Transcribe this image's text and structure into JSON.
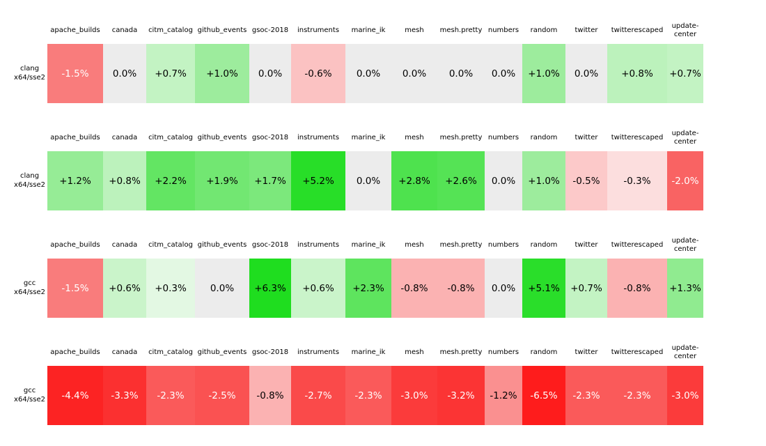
{
  "columns": [
    "apache_builds",
    "canada",
    "citm_catalog",
    "github_events",
    "gsoc-2018",
    "instruments",
    "marine_ik",
    "mesh",
    "mesh.pretty",
    "numbers",
    "random",
    "twitter",
    "twitterescaped",
    "update-center"
  ],
  "colors": {
    "background": "#ffffff",
    "zero_cell": "#ececec",
    "text_dark": "#000000",
    "text_light": "#ffffff",
    "max_green": "#1fdd1f",
    "max_red": "#fe1c1c"
  },
  "blocks": [
    {
      "row_label_line1": "clang",
      "row_label_line2": "x64/sse2",
      "cells": [
        {
          "text": "-1.5%",
          "bg": "#f97c7c",
          "fg": "#ffffff"
        },
        {
          "text": "0.0%",
          "bg": "#ececec",
          "fg": "#000000"
        },
        {
          "text": "+0.7%",
          "bg": "#c3f3c3",
          "fg": "#000000"
        },
        {
          "text": "+1.0%",
          "bg": "#9dec9d",
          "fg": "#000000"
        },
        {
          "text": "0.0%",
          "bg": "#ececec",
          "fg": "#000000"
        },
        {
          "text": "-0.6%",
          "bg": "#fbc2c2",
          "fg": "#000000"
        },
        {
          "text": "0.0%",
          "bg": "#ececec",
          "fg": "#000000"
        },
        {
          "text": "0.0%",
          "bg": "#ececec",
          "fg": "#000000"
        },
        {
          "text": "0.0%",
          "bg": "#ececec",
          "fg": "#000000"
        },
        {
          "text": "0.0%",
          "bg": "#ececec",
          "fg": "#000000"
        },
        {
          "text": "+1.0%",
          "bg": "#9dec9d",
          "fg": "#000000"
        },
        {
          "text": "0.0%",
          "bg": "#ececec",
          "fg": "#000000"
        },
        {
          "text": "+0.8%",
          "bg": "#bcf2bc",
          "fg": "#000000"
        },
        {
          "text": "+0.7%",
          "bg": "#c3f3c3",
          "fg": "#000000"
        }
      ]
    },
    {
      "row_label_line1": "clang",
      "row_label_line2": "x64/sse2",
      "cells": [
        {
          "text": "+1.2%",
          "bg": "#96ec96",
          "fg": "#000000"
        },
        {
          "text": "+0.8%",
          "bg": "#bcf2bc",
          "fg": "#000000"
        },
        {
          "text": "+2.2%",
          "bg": "#63e563",
          "fg": "#000000"
        },
        {
          "text": "+1.9%",
          "bg": "#72e772",
          "fg": "#000000"
        },
        {
          "text": "+1.7%",
          "bg": "#7ce87c",
          "fg": "#000000"
        },
        {
          "text": "+5.2%",
          "bg": "#28de28",
          "fg": "#000000"
        },
        {
          "text": "0.0%",
          "bg": "#ececec",
          "fg": "#000000"
        },
        {
          "text": "+2.8%",
          "bg": "#4ee24e",
          "fg": "#000000"
        },
        {
          "text": "+2.6%",
          "bg": "#55e355",
          "fg": "#000000"
        },
        {
          "text": "0.0%",
          "bg": "#ececec",
          "fg": "#000000"
        },
        {
          "text": "+1.0%",
          "bg": "#9dec9d",
          "fg": "#000000"
        },
        {
          "text": "-0.5%",
          "bg": "#fcc9c9",
          "fg": "#000000"
        },
        {
          "text": "-0.3%",
          "bg": "#fcdede",
          "fg": "#000000"
        },
        {
          "text": "-2.0%",
          "bg": "#f96363",
          "fg": "#ffffff"
        }
      ]
    },
    {
      "row_label_line1": "gcc",
      "row_label_line2": "x64/sse2",
      "cells": [
        {
          "text": "-1.5%",
          "bg": "#f97c7c",
          "fg": "#ffffff"
        },
        {
          "text": "+0.6%",
          "bg": "#caf4ca",
          "fg": "#000000"
        },
        {
          "text": "+0.3%",
          "bg": "#e3f8e3",
          "fg": "#000000"
        },
        {
          "text": "0.0%",
          "bg": "#ececec",
          "fg": "#000000"
        },
        {
          "text": "+6.3%",
          "bg": "#1fdd1f",
          "fg": "#000000"
        },
        {
          "text": "+0.6%",
          "bg": "#caf4ca",
          "fg": "#000000"
        },
        {
          "text": "+2.3%",
          "bg": "#5ee45e",
          "fg": "#000000"
        },
        {
          "text": "-0.8%",
          "bg": "#fbb2b2",
          "fg": "#000000"
        },
        {
          "text": "-0.8%",
          "bg": "#fbb2b2",
          "fg": "#000000"
        },
        {
          "text": "0.0%",
          "bg": "#ececec",
          "fg": "#000000"
        },
        {
          "text": "+5.1%",
          "bg": "#2ade2a",
          "fg": "#000000"
        },
        {
          "text": "+0.7%",
          "bg": "#c3f3c3",
          "fg": "#000000"
        },
        {
          "text": "-0.8%",
          "bg": "#fbb2b2",
          "fg": "#000000"
        },
        {
          "text": "+1.3%",
          "bg": "#90eb90",
          "fg": "#000000"
        }
      ]
    },
    {
      "row_label_line1": "gcc",
      "row_label_line2": "x64/sse2",
      "cells": [
        {
          "text": "-4.4%",
          "bg": "#fc2323",
          "fg": "#ffffff"
        },
        {
          "text": "-3.3%",
          "bg": "#fb3030",
          "fg": "#ffffff"
        },
        {
          "text": "-2.3%",
          "bg": "#fa5a5a",
          "fg": "#ffffff"
        },
        {
          "text": "-2.5%",
          "bg": "#fa5252",
          "fg": "#ffffff"
        },
        {
          "text": "-0.8%",
          "bg": "#fbb2b2",
          "fg": "#000000"
        },
        {
          "text": "-2.7%",
          "bg": "#fa4a4a",
          "fg": "#ffffff"
        },
        {
          "text": "-2.3%",
          "bg": "#fa5a5a",
          "fg": "#ffffff"
        },
        {
          "text": "-3.0%",
          "bg": "#fb3b3b",
          "fg": "#ffffff"
        },
        {
          "text": "-3.2%",
          "bg": "#fb3434",
          "fg": "#ffffff"
        },
        {
          "text": "-1.2%",
          "bg": "#fa9090",
          "fg": "#000000"
        },
        {
          "text": "-6.5%",
          "bg": "#fe1c1c",
          "fg": "#ffffff"
        },
        {
          "text": "-2.3%",
          "bg": "#fa5a5a",
          "fg": "#ffffff"
        },
        {
          "text": "-2.3%",
          "bg": "#fa5a5a",
          "fg": "#ffffff"
        },
        {
          "text": "-3.0%",
          "bg": "#fb3b3b",
          "fg": "#ffffff"
        }
      ]
    }
  ],
  "chart_data": {
    "type": "heatmap",
    "title": "",
    "columns": [
      "apache_builds",
      "canada",
      "citm_catalog",
      "github_events",
      "gsoc-2018",
      "instruments",
      "marine_ik",
      "mesh",
      "mesh.pretty",
      "numbers",
      "random",
      "twitter",
      "twitterescaped",
      "update-center"
    ],
    "rows": [
      "clang x64/sse2",
      "clang x64/sse2",
      "gcc x64/sse2",
      "gcc x64/sse2"
    ],
    "values_percent": [
      [
        -1.5,
        0.0,
        0.7,
        1.0,
        0.0,
        -0.6,
        0.0,
        0.0,
        0.0,
        0.0,
        1.0,
        0.0,
        0.8,
        0.7
      ],
      [
        1.2,
        0.8,
        2.2,
        1.9,
        1.7,
        5.2,
        0.0,
        2.8,
        2.6,
        0.0,
        1.0,
        -0.5,
        -0.3,
        -2.0
      ],
      [
        -1.5,
        0.6,
        0.3,
        0.0,
        6.3,
        0.6,
        2.3,
        -0.8,
        -0.8,
        0.0,
        5.1,
        0.7,
        -0.8,
        1.3
      ],
      [
        -4.4,
        -3.3,
        -2.3,
        -2.5,
        -0.8,
        -2.7,
        -2.3,
        -3.0,
        -3.2,
        -1.2,
        -6.5,
        -2.3,
        -2.3,
        -3.0
      ]
    ],
    "color_scale": {
      "positive": "green (more saturated = larger gain)",
      "negative": "red (more saturated = larger loss)",
      "zero": "#ececec"
    },
    "value_format": "signed percent, one decimal",
    "legend_position": "none",
    "grid": false
  }
}
